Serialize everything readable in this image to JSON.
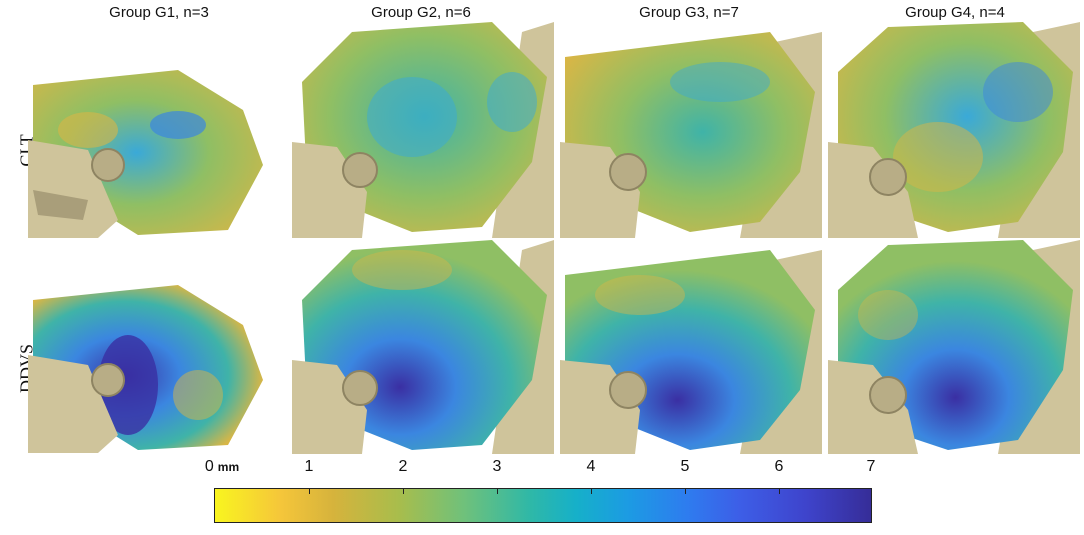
{
  "columns": [
    {
      "label": "Group G1, n=3"
    },
    {
      "label": "Group G2, n=6"
    },
    {
      "label": "Group G3, n=7"
    },
    {
      "label": "Group G4, n=4"
    }
  ],
  "rows": [
    {
      "label": "CLT"
    },
    {
      "label": "DDVS"
    }
  ],
  "colorbar": {
    "ticks": [
      "0",
      "1",
      "2",
      "3",
      "4",
      "5",
      "6",
      "7"
    ],
    "unit": "mm",
    "range": [
      0,
      7
    ],
    "colors": [
      "#f9f51f",
      "#d6b33c",
      "#6fc17b",
      "#16b0c9",
      "#2e7cef",
      "#362d98"
    ]
  },
  "palette": {
    "bone": "#cfc49b",
    "bone_dark": "#9c9170",
    "surface_yellow": "#d8b646",
    "surface_green": "#8fbf64",
    "surface_teal": "#3fb3a8",
    "surface_blue": "#3b86e0",
    "surface_dark_blue": "#3a2fa3"
  }
}
